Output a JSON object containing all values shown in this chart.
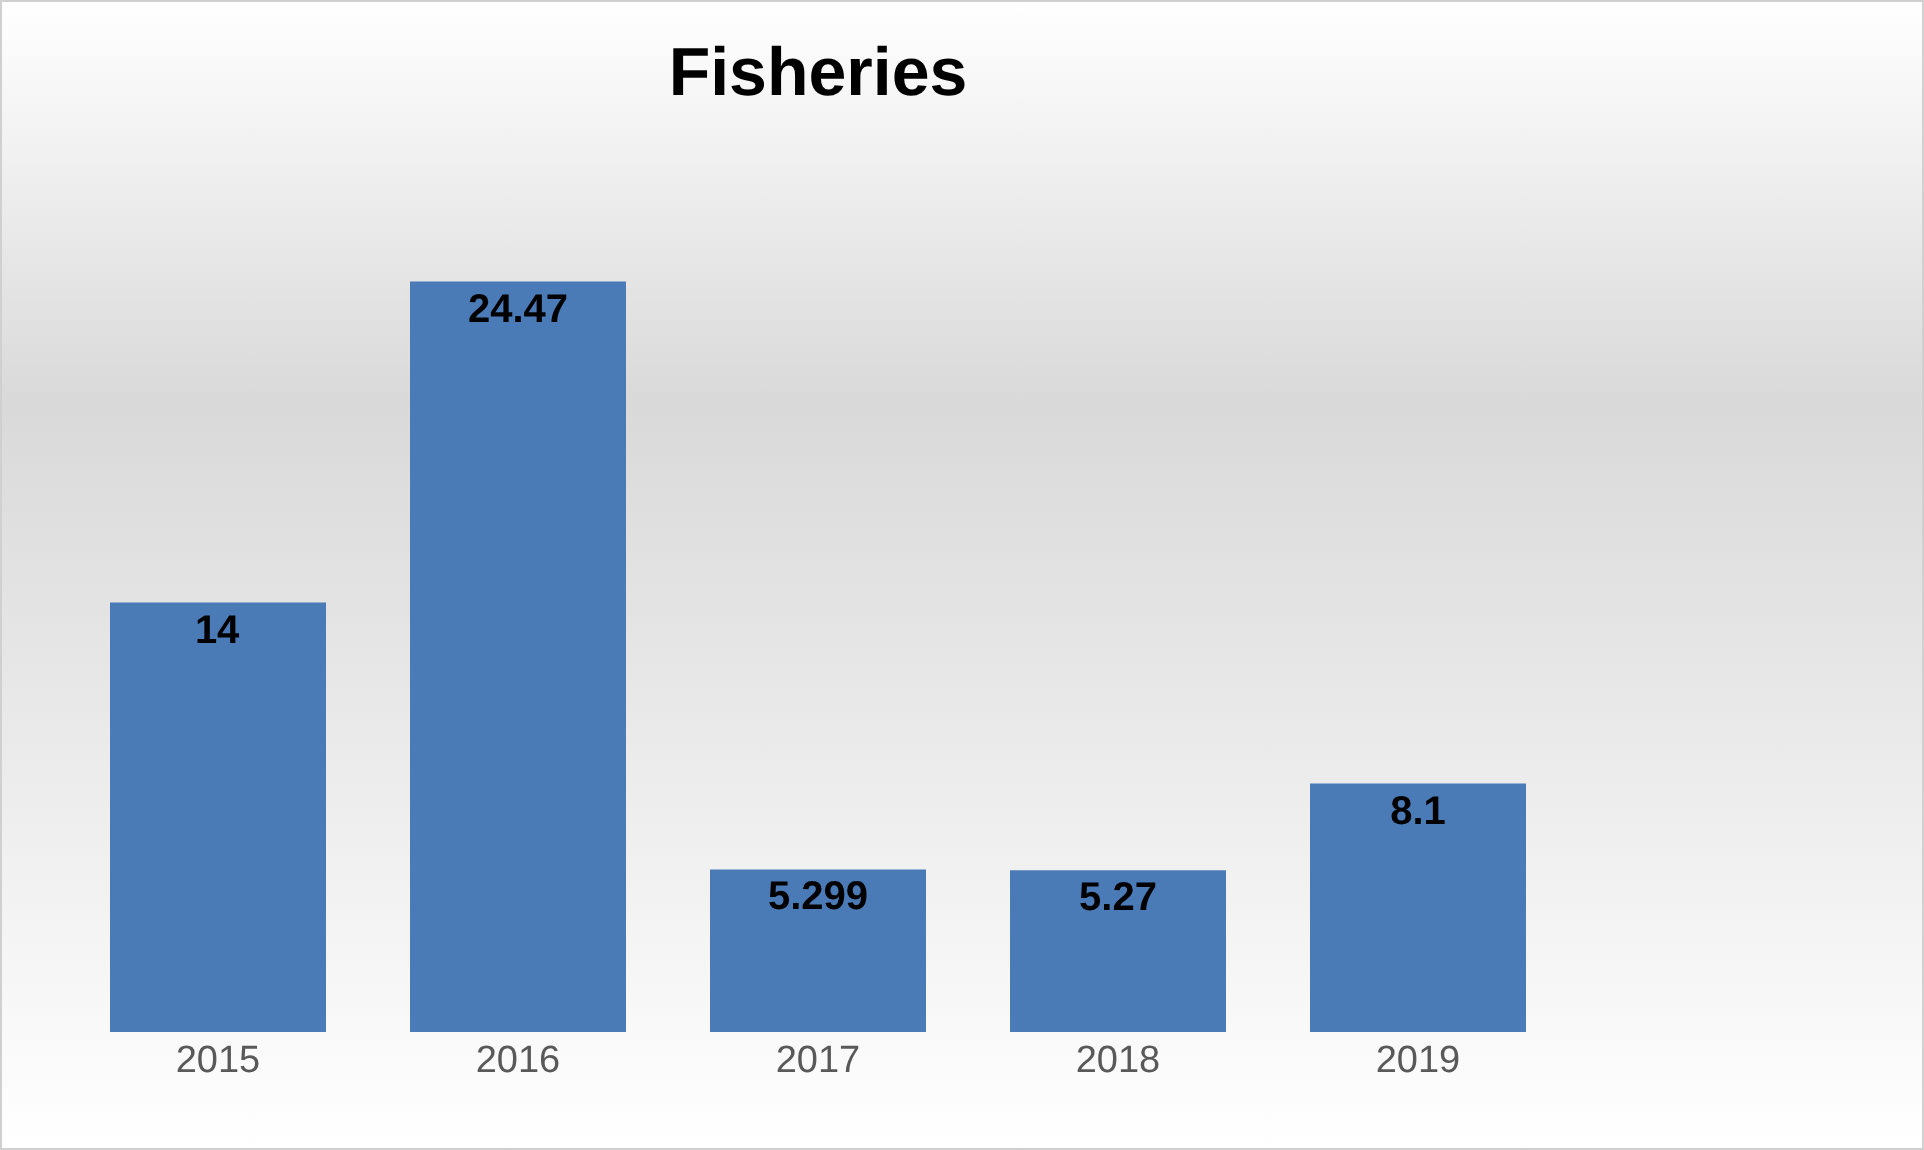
{
  "chart_data": {
    "type": "bar",
    "title": "Fisheries",
    "categories": [
      "2015",
      "2016",
      "2017",
      "2018",
      "2019"
    ],
    "values": [
      14,
      24.47,
      5.299,
      5.27,
      8.1
    ],
    "color": "#4a7bb7",
    "data_labels": true
  }
}
